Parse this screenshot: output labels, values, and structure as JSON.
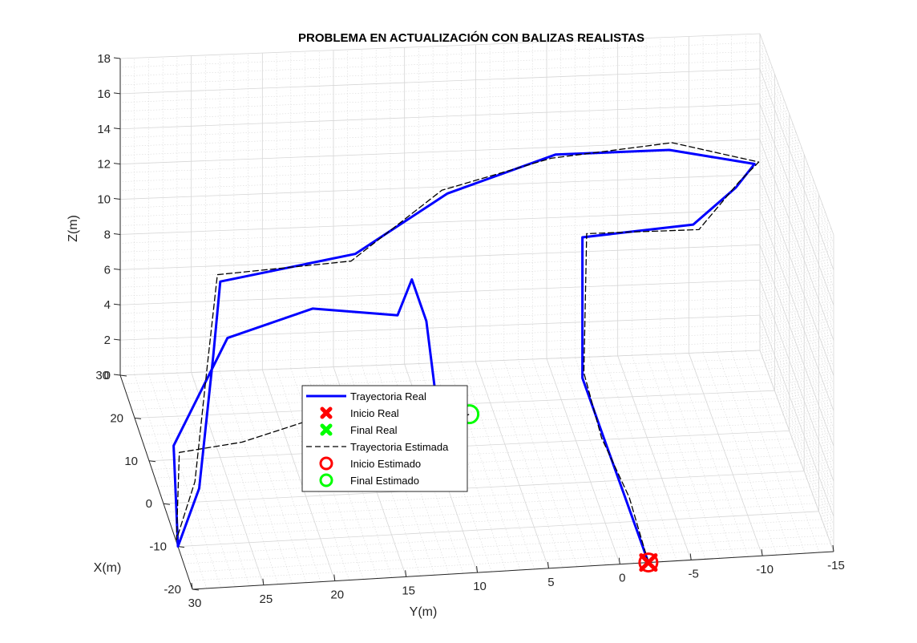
{
  "chart_data": {
    "type": "line3d",
    "title": "PROBLEMA EN ACTUALIZACIÓN CON BALIZAS REALISTAS",
    "xlabel": "X(m)",
    "ylabel": "Y(m)",
    "zlabel": "Z(m)",
    "xlim": [
      -20,
      30
    ],
    "ylim": [
      -15,
      30
    ],
    "zlim": [
      0,
      18
    ],
    "xticks": [
      "-20",
      "-10",
      "0",
      "10",
      "20",
      "30"
    ],
    "yticks": [
      "30",
      "25",
      "20",
      "15",
      "10",
      "5",
      "0",
      "-5",
      "-10",
      "-15"
    ],
    "zticks": [
      "0",
      "2",
      "4",
      "6",
      "8",
      "10",
      "12",
      "14",
      "16",
      "18"
    ],
    "grid": true,
    "legend_position": "inside-lower-left",
    "legend": [
      {
        "label": "Trayectoria Real",
        "marker": "solid-line",
        "color": "#0000ff"
      },
      {
        "label": "Inicio Real",
        "marker": "x",
        "color": "#ff0000"
      },
      {
        "label": "Final Real",
        "marker": "x",
        "color": "#00ff00"
      },
      {
        "label": "Trayectoria Estimada",
        "marker": "dashed-line",
        "color": "#000000"
      },
      {
        "label": "Inicio Estimado",
        "marker": "o",
        "color": "#ff0000"
      },
      {
        "label": "Final Estimado",
        "marker": "o",
        "color": "#00ff00"
      }
    ],
    "series": [
      {
        "name": "Trayectoria Real",
        "color": "#0000ff",
        "points": [
          [
            -20,
            -2,
            0
          ],
          [
            -5,
            -2,
            0
          ],
          [
            10,
            -2,
            0
          ],
          [
            25,
            -2,
            0
          ],
          [
            25,
            -2,
            8
          ],
          [
            27,
            -10,
            8
          ],
          [
            27,
            -13,
            10
          ],
          [
            24,
            -14,
            12
          ],
          [
            24,
            -8,
            13
          ],
          [
            24,
            0,
            13
          ],
          [
            20,
            8,
            12
          ],
          [
            15,
            15,
            10
          ],
          [
            10,
            25,
            10
          ],
          [
            5,
            26,
            7
          ],
          [
            -5,
            28,
            2
          ],
          [
            -10,
            30,
            0
          ],
          [
            -7,
            30,
            5
          ],
          [
            5,
            25,
            8
          ],
          [
            15,
            18,
            7
          ],
          [
            25,
            11,
            4
          ],
          [
            25,
            10,
            6
          ],
          [
            15,
            10,
            6
          ],
          [
            8,
            10,
            3
          ]
        ]
      },
      {
        "name": "Trayectoria Estimada",
        "color": "#000000",
        "points": [
          [
            -20,
            -2,
            0
          ],
          [
            -5,
            -2.2,
            0.2
          ],
          [
            10,
            -1.8,
            0.1
          ],
          [
            25,
            -2.1,
            0.3
          ],
          [
            25,
            -2.3,
            8.2
          ],
          [
            27,
            -10.4,
            7.7
          ],
          [
            27,
            -13.2,
            10.3
          ],
          [
            24,
            -14.3,
            12.1
          ],
          [
            24,
            -8.2,
            13.4
          ],
          [
            24,
            0.3,
            12.8
          ],
          [
            20,
            8.4,
            12.2
          ],
          [
            15,
            15.3,
            9.6
          ],
          [
            10,
            25.2,
            10.4
          ],
          [
            5,
            26.4,
            6.6
          ],
          [
            -5,
            28.3,
            2.4
          ],
          [
            -10,
            30.1,
            0.4
          ],
          [
            -7,
            29.6,
            4.6
          ],
          [
            -5,
            25,
            4.5
          ],
          [
            -3,
            18,
            5.5
          ],
          [
            0,
            12,
            4.2
          ],
          [
            2,
            9,
            3.5
          ],
          [
            5,
            8,
            3
          ]
        ]
      }
    ],
    "markers": [
      {
        "name": "Inicio Real",
        "point": [
          -20,
          -2,
          0
        ],
        "symbol": "x",
        "color": "#ff0000"
      },
      {
        "name": "Final Real",
        "point": [
          8,
          10,
          3
        ],
        "symbol": "x",
        "color": "#00ff00"
      },
      {
        "name": "Inicio Estimado",
        "point": [
          -20,
          -2,
          0
        ],
        "symbol": "o",
        "color": "#ff0000"
      },
      {
        "name": "Final Estimado",
        "point": [
          5,
          8,
          3
        ],
        "symbol": "o",
        "color": "#00ff00"
      }
    ]
  }
}
